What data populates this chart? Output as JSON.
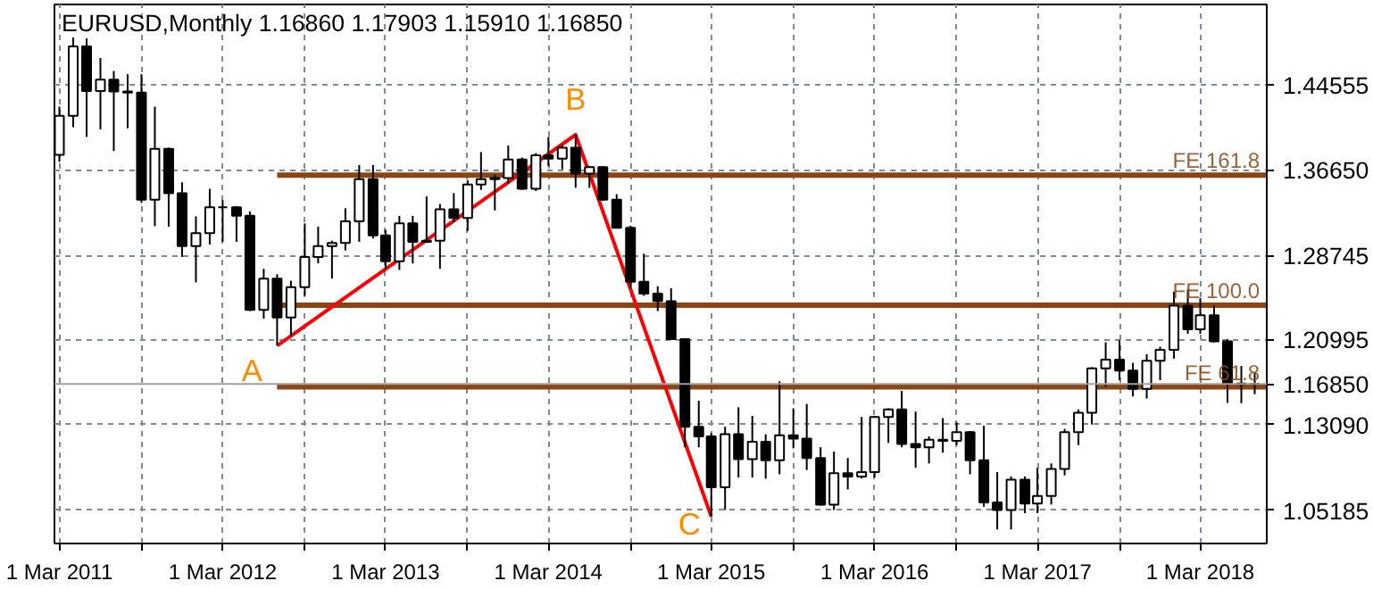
{
  "chart_data": {
    "type": "candlestick",
    "title": "EURUSD,Monthly  1.16860 1.17903 1.15910 1.16850",
    "x": [
      "2011-03",
      "2011-04",
      "2011-05",
      "2011-06",
      "2011-07",
      "2011-08",
      "2011-09",
      "2011-10",
      "2011-11",
      "2011-12",
      "2012-01",
      "2012-02",
      "2012-03",
      "2012-04",
      "2012-05",
      "2012-06",
      "2012-07",
      "2012-08",
      "2012-09",
      "2012-10",
      "2012-11",
      "2012-12",
      "2013-01",
      "2013-02",
      "2013-03",
      "2013-04",
      "2013-05",
      "2013-06",
      "2013-07",
      "2013-08",
      "2013-09",
      "2013-10",
      "2013-11",
      "2013-12",
      "2014-01",
      "2014-02",
      "2014-03",
      "2014-04",
      "2014-05",
      "2014-06",
      "2014-07",
      "2014-08",
      "2014-09",
      "2014-10",
      "2014-11",
      "2014-12",
      "2015-01",
      "2015-02",
      "2015-03",
      "2015-04",
      "2015-05",
      "2015-06",
      "2015-07",
      "2015-08",
      "2015-09",
      "2015-10",
      "2015-11",
      "2015-12",
      "2016-01",
      "2016-02",
      "2016-03",
      "2016-04",
      "2016-05",
      "2016-06",
      "2016-07",
      "2016-08",
      "2016-09",
      "2016-10",
      "2016-11",
      "2016-12",
      "2017-01",
      "2017-02",
      "2017-03",
      "2017-04",
      "2017-05",
      "2017-06",
      "2017-07",
      "2017-08",
      "2017-09",
      "2017-10",
      "2017-11",
      "2017-12",
      "2018-01",
      "2018-02",
      "2018-03",
      "2018-04",
      "2018-05",
      "2018-06",
      "2018-07"
    ],
    "ohlc": [
      [
        1.3805,
        1.425,
        1.374,
        1.4165
      ],
      [
        1.4165,
        1.489,
        1.406,
        1.4807
      ],
      [
        1.4807,
        1.4882,
        1.397,
        1.4395
      ],
      [
        1.4395,
        1.47,
        1.404,
        1.45
      ],
      [
        1.45,
        1.458,
        1.384,
        1.439
      ],
      [
        1.439,
        1.455,
        1.405,
        1.438
      ],
      [
        1.438,
        1.455,
        1.336,
        1.339
      ],
      [
        1.339,
        1.425,
        1.3145,
        1.386
      ],
      [
        1.386,
        1.387,
        1.314,
        1.345
      ],
      [
        1.345,
        1.355,
        1.286,
        1.296
      ],
      [
        1.296,
        1.3235,
        1.2625,
        1.308
      ],
      [
        1.308,
        1.349,
        1.2975,
        1.332
      ],
      [
        1.332,
        1.3385,
        1.3,
        1.332
      ],
      [
        1.332,
        1.333,
        1.3,
        1.324
      ],
      [
        1.324,
        1.328,
        1.236,
        1.237
      ],
      [
        1.237,
        1.275,
        1.229,
        1.266
      ],
      [
        1.266,
        1.27,
        1.204,
        1.23
      ],
      [
        1.23,
        1.264,
        1.213,
        1.258
      ],
      [
        1.258,
        1.317,
        1.25,
        1.286
      ],
      [
        1.286,
        1.314,
        1.28,
        1.296
      ],
      [
        1.296,
        1.301,
        1.266,
        1.299
      ],
      [
        1.299,
        1.331,
        1.292,
        1.319
      ],
      [
        1.319,
        1.371,
        1.3,
        1.358
      ],
      [
        1.358,
        1.371,
        1.303,
        1.306
      ],
      [
        1.306,
        1.311,
        1.275,
        1.282
      ],
      [
        1.282,
        1.324,
        1.274,
        1.317
      ],
      [
        1.317,
        1.324,
        1.28,
        1.3
      ],
      [
        1.3,
        1.342,
        1.299,
        1.301
      ],
      [
        1.301,
        1.335,
        1.275,
        1.33
      ],
      [
        1.33,
        1.345,
        1.318,
        1.322
      ],
      [
        1.322,
        1.357,
        1.31,
        1.353
      ],
      [
        1.353,
        1.383,
        1.348,
        1.358
      ],
      [
        1.358,
        1.362,
        1.329,
        1.359
      ],
      [
        1.359,
        1.389,
        1.354,
        1.376
      ],
      [
        1.376,
        1.378,
        1.348,
        1.349
      ],
      [
        1.349,
        1.382,
        1.347,
        1.38
      ],
      [
        1.38,
        1.397,
        1.37,
        1.377
      ],
      [
        1.377,
        1.39,
        1.367,
        1.387
      ],
      [
        1.387,
        1.3993,
        1.35,
        1.363
      ],
      [
        1.363,
        1.37,
        1.35,
        1.369
      ],
      [
        1.369,
        1.37,
        1.338,
        1.339
      ],
      [
        1.339,
        1.344,
        1.313,
        1.313
      ],
      [
        1.313,
        1.315,
        1.257,
        1.263
      ],
      [
        1.263,
        1.289,
        1.25,
        1.252
      ],
      [
        1.252,
        1.259,
        1.236,
        1.245
      ],
      [
        1.245,
        1.257,
        1.21,
        1.21
      ],
      [
        1.21,
        1.21,
        1.11,
        1.129
      ],
      [
        1.129,
        1.153,
        1.11,
        1.12
      ],
      [
        1.12,
        1.123,
        1.046,
        1.073
      ],
      [
        1.073,
        1.129,
        1.052,
        1.122
      ],
      [
        1.122,
        1.147,
        1.082,
        1.099
      ],
      [
        1.099,
        1.139,
        1.082,
        1.115
      ],
      [
        1.115,
        1.122,
        1.081,
        1.098
      ],
      [
        1.098,
        1.171,
        1.085,
        1.121
      ],
      [
        1.121,
        1.146,
        1.109,
        1.118
      ],
      [
        1.118,
        1.15,
        1.089,
        1.1
      ],
      [
        1.1,
        1.11,
        1.056,
        1.057
      ],
      [
        1.057,
        1.106,
        1.052,
        1.086
      ],
      [
        1.086,
        1.1,
        1.071,
        1.083
      ],
      [
        1.083,
        1.138,
        1.081,
        1.087
      ],
      [
        1.087,
        1.139,
        1.082,
        1.138
      ],
      [
        1.138,
        1.146,
        1.114,
        1.145
      ],
      [
        1.145,
        1.162,
        1.11,
        1.113
      ],
      [
        1.113,
        1.143,
        1.091,
        1.11
      ],
      [
        1.11,
        1.12,
        1.095,
        1.117
      ],
      [
        1.117,
        1.137,
        1.105,
        1.116
      ],
      [
        1.116,
        1.133,
        1.112,
        1.124
      ],
      [
        1.124,
        1.125,
        1.085,
        1.098
      ],
      [
        1.098,
        1.13,
        1.055,
        1.059
      ],
      [
        1.059,
        1.087,
        1.034,
        1.052
      ],
      [
        1.052,
        1.083,
        1.034,
        1.08
      ],
      [
        1.08,
        1.083,
        1.049,
        1.058
      ],
      [
        1.058,
        1.091,
        1.049,
        1.065
      ],
      [
        1.065,
        1.095,
        1.057,
        1.09
      ],
      [
        1.09,
        1.127,
        1.084,
        1.124
      ],
      [
        1.124,
        1.145,
        1.112,
        1.142
      ],
      [
        1.142,
        1.184,
        1.131,
        1.183
      ],
      [
        1.183,
        1.207,
        1.166,
        1.191
      ],
      [
        1.191,
        1.209,
        1.172,
        1.181
      ],
      [
        1.181,
        1.188,
        1.157,
        1.164
      ],
      [
        1.164,
        1.196,
        1.155,
        1.19
      ],
      [
        1.19,
        1.203,
        1.172,
        1.2
      ],
      [
        1.2,
        1.254,
        1.192,
        1.241
      ],
      [
        1.241,
        1.256,
        1.215,
        1.219
      ],
      [
        1.219,
        1.248,
        1.215,
        1.232
      ],
      [
        1.232,
        1.241,
        1.207,
        1.208
      ],
      [
        1.208,
        1.21,
        1.151,
        1.169
      ],
      [
        1.169,
        1.1852,
        1.1508,
        1.1684
      ],
      [
        1.1686,
        1.17903,
        1.1591,
        1.1685
      ]
    ],
    "series": [
      {
        "type": "line",
        "x": [
          "2012-07",
          "2014-05",
          "2015-03"
        ],
        "values": [
          1.204,
          1.399,
          1.046
        ],
        "color": "#ff0000"
      }
    ],
    "ref_lines": [
      {
        "axis": "y",
        "value": 1.3617,
        "label": "FE 161.8",
        "color": "#8b4513"
      },
      {
        "axis": "y",
        "value": 1.2414,
        "label": "FE 100.0",
        "color": "#8b4513"
      },
      {
        "axis": "y",
        "value": 1.1658,
        "label": "FE 61.8",
        "color": "#8b4513"
      },
      {
        "axis": "y",
        "value": 1.1685,
        "label": "1.16850",
        "color": "#a0a0a0"
      }
    ],
    "annotations": [
      {
        "text": "A",
        "x": "2012-07",
        "y": 1.204
      },
      {
        "text": "B",
        "x": "2014-05",
        "y": 1.399
      },
      {
        "text": "C",
        "x": "2015-03",
        "y": 1.046
      }
    ],
    "xlim": [
      "2011-02-18",
      "2018-07-28"
    ],
    "xticks": [
      {
        "value": "2011-03",
        "label": "1 Mar 2011"
      },
      {
        "value": "2011-09",
        "label": null
      },
      {
        "value": "2012-03",
        "label": "1 Mar 2012"
      },
      {
        "value": "2012-09",
        "label": null
      },
      {
        "value": "2013-03",
        "label": "1 Mar 2013"
      },
      {
        "value": "2013-09",
        "label": null
      },
      {
        "value": "2014-03",
        "label": "1 Mar 2014"
      },
      {
        "value": "2014-09",
        "label": null
      },
      {
        "value": "2015-03",
        "label": "1 Mar 2015"
      },
      {
        "value": "2015-09",
        "label": null
      },
      {
        "value": "2016-03",
        "label": "1 Mar 2016"
      },
      {
        "value": "2016-09",
        "label": null
      },
      {
        "value": "2017-03",
        "label": "1 Mar 2017"
      },
      {
        "value": "2017-09",
        "label": null
      },
      {
        "value": "2018-03",
        "label": "1 Mar 2018"
      }
    ],
    "ylim": [
      1.021,
      1.5195
    ],
    "yticks": [
      {
        "value": 1.05185,
        "label": "1.05185"
      },
      {
        "value": 1.1309,
        "label": "1.13090"
      },
      {
        "value": 1.20995,
        "label": "1.20995"
      },
      {
        "value": 1.28745,
        "label": "1.28745"
      },
      {
        "value": 1.3665,
        "label": "1.36650"
      },
      {
        "value": 1.44555,
        "label": "1.44555"
      }
    ],
    "grid": true
  }
}
